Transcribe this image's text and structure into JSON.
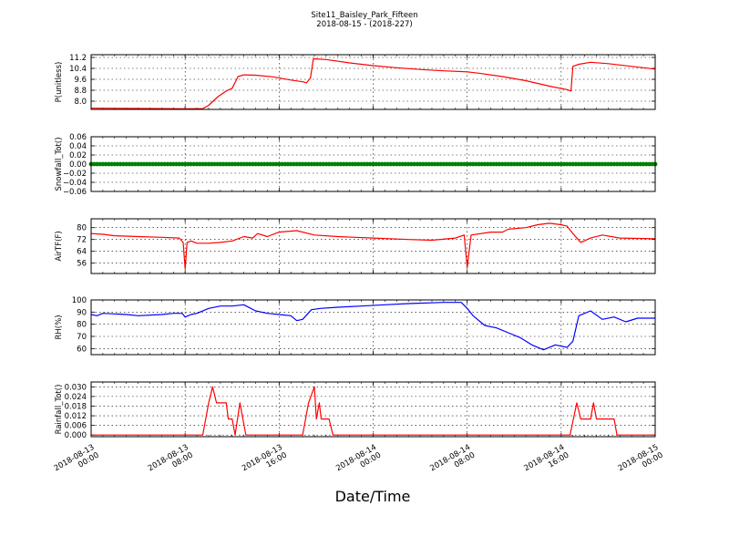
{
  "figure": {
    "title_line1": "Site11_Baisley_Park_Fifteen",
    "title_line2": "2018-08-15 - (2018-227)",
    "xlabel": "Date/Time"
  },
  "chart_data": {
    "type": "line",
    "x_range": [
      "2018-08-13 00:00",
      "2018-08-15 00:00"
    ],
    "x_ticks": [
      {
        "t": "2018-08-13 00:00",
        "line1": "2018-08-13",
        "line2": "00:00"
      },
      {
        "t": "2018-08-13 08:00",
        "line1": "2018-08-13",
        "line2": "08:00"
      },
      {
        "t": "2018-08-13 16:00",
        "line1": "2018-08-13",
        "line2": "16:00"
      },
      {
        "t": "2018-08-14 00:00",
        "line1": "2018-08-14",
        "line2": "00:00"
      },
      {
        "t": "2018-08-14 08:00",
        "line1": "2018-08-14",
        "line2": "08:00"
      },
      {
        "t": "2018-08-14 16:00",
        "line1": "2018-08-14",
        "line2": "16:00"
      },
      {
        "t": "2018-08-15 00:00",
        "line1": "2018-08-15",
        "line2": "00:00"
      }
    ],
    "grid": true,
    "panels": [
      {
        "ylabel": "P(unitless)",
        "color": "#ff0000",
        "ylim": [
          7.4,
          11.4
        ],
        "yticks": [
          8.0,
          8.8,
          9.6,
          10.4,
          11.2
        ],
        "ytick_labels": [
          "8.0",
          "8.8",
          "9.6",
          "10.4",
          "11.2"
        ],
        "points": [
          [
            "2018-08-13 00:00",
            7.49
          ],
          [
            "2018-08-13 02:00",
            7.48
          ],
          [
            "2018-08-13 04:00",
            7.47
          ],
          [
            "2018-08-13 06:00",
            7.46
          ],
          [
            "2018-08-13 08:00",
            7.45
          ],
          [
            "2018-08-13 09:30",
            7.46
          ],
          [
            "2018-08-13 10:00",
            7.7
          ],
          [
            "2018-08-13 10:45",
            8.3
          ],
          [
            "2018-08-13 11:30",
            8.75
          ],
          [
            "2018-08-13 12:00",
            8.95
          ],
          [
            "2018-08-13 12:30",
            9.8
          ],
          [
            "2018-08-13 13:00",
            9.93
          ],
          [
            "2018-08-13 14:00",
            9.9
          ],
          [
            "2018-08-13 15:30",
            9.78
          ],
          [
            "2018-08-13 17:00",
            9.55
          ],
          [
            "2018-08-13 18:00",
            9.42
          ],
          [
            "2018-08-13 18:20",
            9.35
          ],
          [
            "2018-08-13 18:40",
            9.7
          ],
          [
            "2018-08-13 18:55",
            11.1
          ],
          [
            "2018-08-13 20:00",
            11.05
          ],
          [
            "2018-08-13 22:00",
            10.8
          ],
          [
            "2018-08-14 00:00",
            10.6
          ],
          [
            "2018-08-14 02:00",
            10.45
          ],
          [
            "2018-08-14 04:00",
            10.32
          ],
          [
            "2018-08-14 06:00",
            10.22
          ],
          [
            "2018-08-14 08:00",
            10.15
          ],
          [
            "2018-08-14 09:00",
            10.05
          ],
          [
            "2018-08-14 11:00",
            9.8
          ],
          [
            "2018-08-14 13:00",
            9.5
          ],
          [
            "2018-08-14 15:00",
            9.1
          ],
          [
            "2018-08-14 16:30",
            8.85
          ],
          [
            "2018-08-14 16:50",
            8.75
          ],
          [
            "2018-08-14 17:00",
            10.55
          ],
          [
            "2018-08-14 17:30",
            10.7
          ],
          [
            "2018-08-14 18:30",
            10.85
          ],
          [
            "2018-08-14 20:00",
            10.75
          ],
          [
            "2018-08-14 22:00",
            10.55
          ],
          [
            "2018-08-15 00:00",
            10.35
          ]
        ]
      },
      {
        "ylabel": "Snowfall_Tot()",
        "color": "#008000",
        "ylim": [
          -0.06,
          0.06
        ],
        "yticks": [
          -0.06,
          -0.04,
          -0.02,
          0.0,
          0.02,
          0.04,
          0.06
        ],
        "ytick_labels": [
          "−0.06",
          "−0.04",
          "−0.02",
          "0.00",
          "0.02",
          "0.04",
          "0.06"
        ],
        "constant": 0.0,
        "markers": true
      },
      {
        "ylabel": "AirTF(F)",
        "color": "#ff0000",
        "ylim": [
          49,
          86
        ],
        "yticks": [
          56,
          64,
          72,
          80
        ],
        "ytick_labels": [
          "56",
          "64",
          "72",
          "80"
        ],
        "points": [
          [
            "2018-08-13 00:00",
            76
          ],
          [
            "2018-08-13 01:00",
            75.5
          ],
          [
            "2018-08-13 02:00",
            74.5
          ],
          [
            "2018-08-13 04:00",
            74
          ],
          [
            "2018-08-13 06:00",
            73.5
          ],
          [
            "2018-08-13 07:30",
            73
          ],
          [
            "2018-08-13 07:50",
            70
          ],
          [
            "2018-08-13 08:00",
            52
          ],
          [
            "2018-08-13 08:10",
            70
          ],
          [
            "2018-08-13 08:30",
            71
          ],
          [
            "2018-08-13 09:00",
            69.5
          ],
          [
            "2018-08-13 10:00",
            69.5
          ],
          [
            "2018-08-13 11:00",
            70
          ],
          [
            "2018-08-13 12:00",
            71
          ],
          [
            "2018-08-13 13:00",
            74
          ],
          [
            "2018-08-13 13:45",
            73
          ],
          [
            "2018-08-13 14:10",
            76
          ],
          [
            "2018-08-13 15:00",
            74
          ],
          [
            "2018-08-13 16:00",
            77
          ],
          [
            "2018-08-13 17:30",
            78
          ],
          [
            "2018-08-13 19:00",
            75
          ],
          [
            "2018-08-13 21:00",
            74
          ],
          [
            "2018-08-14 00:00",
            73
          ],
          [
            "2018-08-14 03:00",
            72
          ],
          [
            "2018-08-14 05:00",
            71.5
          ],
          [
            "2018-08-14 07:00",
            73
          ],
          [
            "2018-08-14 07:45",
            75
          ],
          [
            "2018-08-14 08:00",
            53
          ],
          [
            "2018-08-14 08:20",
            75
          ],
          [
            "2018-08-14 10:00",
            77
          ],
          [
            "2018-08-14 11:00",
            77
          ],
          [
            "2018-08-14 11:30",
            79
          ],
          [
            "2018-08-14 13:00",
            80
          ],
          [
            "2018-08-14 14:00",
            82
          ],
          [
            "2018-08-14 15:00",
            83
          ],
          [
            "2018-08-14 16:00",
            82
          ],
          [
            "2018-08-14 16:30",
            81
          ],
          [
            "2018-08-14 17:00",
            76
          ],
          [
            "2018-08-14 17:40",
            70
          ],
          [
            "2018-08-14 18:30",
            73
          ],
          [
            "2018-08-14 19:30",
            75
          ],
          [
            "2018-08-14 21:00",
            73
          ],
          [
            "2018-08-15 00:00",
            72.5
          ]
        ]
      },
      {
        "ylabel": "RH(%)",
        "color": "#0000ff",
        "ylim": [
          55,
          100
        ],
        "yticks": [
          60,
          70,
          80,
          90,
          100
        ],
        "ytick_labels": [
          "60",
          "70",
          "80",
          "90",
          "100"
        ],
        "points": [
          [
            "2018-08-13 00:00",
            88
          ],
          [
            "2018-08-13 00:30",
            87
          ],
          [
            "2018-08-13 01:00",
            89
          ],
          [
            "2018-08-13 03:00",
            88
          ],
          [
            "2018-08-13 04:00",
            87
          ],
          [
            "2018-08-13 06:00",
            88
          ],
          [
            "2018-08-13 07:00",
            89
          ],
          [
            "2018-08-13 07:45",
            89
          ],
          [
            "2018-08-13 08:00",
            86
          ],
          [
            "2018-08-13 08:30",
            88
          ],
          [
            "2018-08-13 09:00",
            89
          ],
          [
            "2018-08-13 10:00",
            93
          ],
          [
            "2018-08-13 11:00",
            95
          ],
          [
            "2018-08-13 12:00",
            95
          ],
          [
            "2018-08-13 13:00",
            96
          ],
          [
            "2018-08-13 14:00",
            91
          ],
          [
            "2018-08-13 15:00",
            89
          ],
          [
            "2018-08-13 16:00",
            88
          ],
          [
            "2018-08-13 17:00",
            87
          ],
          [
            "2018-08-13 17:30",
            83
          ],
          [
            "2018-08-13 18:00",
            84
          ],
          [
            "2018-08-13 18:45",
            92
          ],
          [
            "2018-08-13 19:30",
            93
          ],
          [
            "2018-08-13 21:00",
            94
          ],
          [
            "2018-08-13 23:00",
            95
          ],
          [
            "2018-08-14 01:00",
            96
          ],
          [
            "2018-08-14 03:00",
            97
          ],
          [
            "2018-08-14 06:00",
            98
          ],
          [
            "2018-08-14 07:30",
            98
          ],
          [
            "2018-08-14 08:00",
            93
          ],
          [
            "2018-08-14 08:30",
            87
          ],
          [
            "2018-08-14 09:30",
            79
          ],
          [
            "2018-08-14 10:30",
            77
          ],
          [
            "2018-08-14 11:30",
            73
          ],
          [
            "2018-08-14 12:30",
            69
          ],
          [
            "2018-08-14 13:30",
            63
          ],
          [
            "2018-08-14 14:30",
            59
          ],
          [
            "2018-08-14 15:30",
            63
          ],
          [
            "2018-08-14 16:30",
            61
          ],
          [
            "2018-08-14 17:00",
            66
          ],
          [
            "2018-08-14 17:30",
            87
          ],
          [
            "2018-08-14 18:30",
            91
          ],
          [
            "2018-08-14 19:30",
            84
          ],
          [
            "2018-08-14 20:30",
            86
          ],
          [
            "2018-08-14 21:30",
            82
          ],
          [
            "2018-08-14 22:30",
            85
          ],
          [
            "2018-08-15 00:00",
            85
          ]
        ]
      },
      {
        "ylabel": "Rainfall_Tot()",
        "color": "#ff0000",
        "ylim": [
          -0.001,
          0.033
        ],
        "yticks": [
          0.0,
          0.006,
          0.012,
          0.018,
          0.024,
          0.03
        ],
        "ytick_labels": [
          "0.000",
          "0.006",
          "0.012",
          "0.018",
          "0.024",
          "0.030"
        ],
        "points": [
          [
            "2018-08-13 00:00",
            0
          ],
          [
            "2018-08-13 09:30",
            0
          ],
          [
            "2018-08-13 10:00",
            0.02
          ],
          [
            "2018-08-13 10:20",
            0.03
          ],
          [
            "2018-08-13 10:40",
            0.02
          ],
          [
            "2018-08-13 11:30",
            0.02
          ],
          [
            "2018-08-13 11:40",
            0.01
          ],
          [
            "2018-08-13 12:00",
            0.01
          ],
          [
            "2018-08-13 12:15",
            0
          ],
          [
            "2018-08-13 12:40",
            0.02
          ],
          [
            "2018-08-13 13:10",
            0
          ],
          [
            "2018-08-13 18:00",
            0
          ],
          [
            "2018-08-13 18:30",
            0.02
          ],
          [
            "2018-08-13 19:00",
            0.03
          ],
          [
            "2018-08-13 19:10",
            0.01
          ],
          [
            "2018-08-13 19:25",
            0.02
          ],
          [
            "2018-08-13 19:35",
            0.01
          ],
          [
            "2018-08-13 20:15",
            0.01
          ],
          [
            "2018-08-13 20:35",
            0
          ],
          [
            "2018-08-14 16:45",
            0
          ],
          [
            "2018-08-14 17:20",
            0.02
          ],
          [
            "2018-08-14 17:40",
            0.01
          ],
          [
            "2018-08-14 18:30",
            0.01
          ],
          [
            "2018-08-14 18:45",
            0.02
          ],
          [
            "2018-08-14 19:00",
            0.01
          ],
          [
            "2018-08-14 20:30",
            0.01
          ],
          [
            "2018-08-14 20:45",
            0
          ],
          [
            "2018-08-15 00:00",
            0
          ]
        ]
      }
    ]
  }
}
